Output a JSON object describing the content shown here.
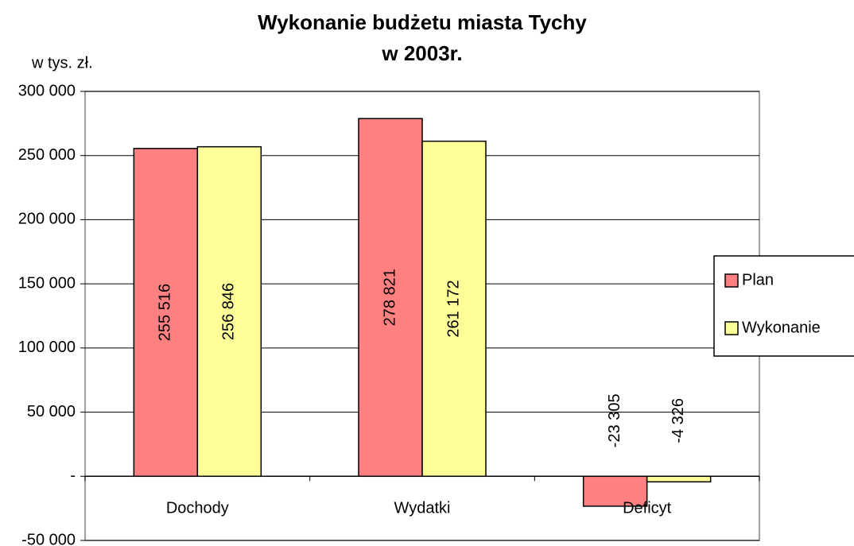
{
  "chart_data": {
    "type": "bar",
    "title": [
      "Wykonanie budżetu miasta Tychy",
      "w  2003r."
    ],
    "y_label": "w tys. zł.",
    "categories": [
      "Dochody",
      "Wydatki",
      "Deficyt"
    ],
    "series": [
      {
        "name": "Plan",
        "color": "#ff8080",
        "values": [
          255516,
          278821,
          -23305
        ],
        "value_labels": [
          "255 516",
          "278 821",
          "-23 305"
        ]
      },
      {
        "name": "Wykonanie",
        "color": "#ffff99",
        "values": [
          256846,
          261172,
          -4326
        ],
        "value_labels": [
          "256 846",
          "261 172",
          "-4 326"
        ]
      }
    ],
    "ylim": [
      -50000,
      300000
    ],
    "yticks": [
      {
        "value": -50000,
        "label": "-50 000"
      },
      {
        "value": 0,
        "label": "-"
      },
      {
        "value": 50000,
        "label": "50 000"
      },
      {
        "value": 100000,
        "label": "100 000"
      },
      {
        "value": 150000,
        "label": "150 000"
      },
      {
        "value": 200000,
        "label": "200 000"
      },
      {
        "value": 250000,
        "label": "250 000"
      },
      {
        "value": 300000,
        "label": "300 000"
      }
    ],
    "grid": true,
    "legend": "right"
  }
}
